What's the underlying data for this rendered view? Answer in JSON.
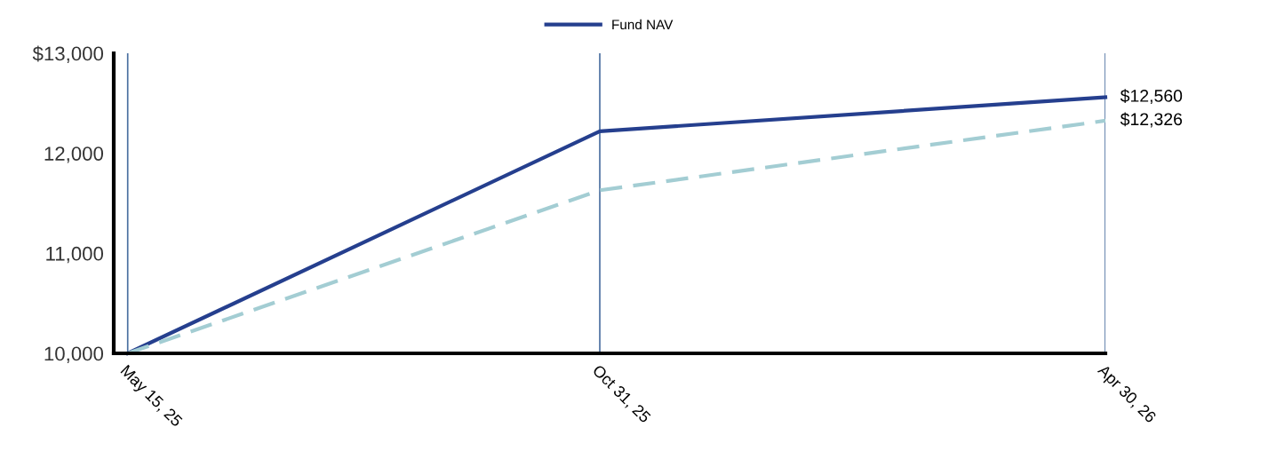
{
  "chart_data": {
    "type": "line",
    "x": [
      "2025-05-15",
      "2025-10-31",
      "2026-04-30"
    ],
    "series": [
      {
        "name": "Fund NAV",
        "color": "#253f8e",
        "line_style": "solid",
        "values": [
          10000,
          12220,
          12560
        ],
        "value_labels": [
          null,
          null,
          "$12,560"
        ]
      },
      {
        "color": "#a3cdd3",
        "line_style": "dashed",
        "values": [
          10000,
          11630,
          12326
        ],
        "value_labels": [
          null,
          null,
          "$12,326"
        ]
      }
    ],
    "xlim": [
      "2025-05-10",
      "2026-04-30"
    ],
    "xticks": [
      {
        "value": "2025-05-15",
        "label": "May 15, 25"
      },
      {
        "value": "2025-10-31",
        "label": "Oct 31, 25"
      },
      {
        "value": "2026-04-30",
        "label": "Apr 30, 26"
      }
    ],
    "ylim": [
      10000,
      13000
    ],
    "yticks": [
      {
        "value": 10000,
        "label": "10,000"
      },
      {
        "value": 11000,
        "label": "11,000"
      },
      {
        "value": 12000,
        "label": "12,000"
      },
      {
        "value": 13000,
        "label": "$13,000"
      }
    ],
    "grid": "x",
    "legend": "top",
    "marker": "none"
  }
}
